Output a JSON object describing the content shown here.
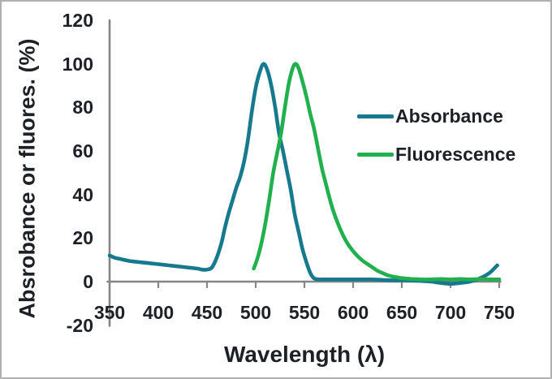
{
  "frame": {
    "background": "#ffffff",
    "border_color": "#b0b0b0"
  },
  "chart_data": {
    "type": "line",
    "title": "",
    "xlabel": "Wavelength (λ)",
    "ylabel": "Absrobance or fluores. (%)",
    "xlim": [
      350,
      750
    ],
    "ylim": [
      -20,
      120
    ],
    "x_ticks": [
      350,
      400,
      450,
      500,
      550,
      600,
      650,
      700,
      750
    ],
    "y_ticks": [
      120,
      100,
      80,
      60,
      40,
      20,
      0,
      -20
    ],
    "grid": false,
    "axis_color": "#858585",
    "text_color": "#1d2025",
    "legend_position": "middle-right",
    "series": [
      {
        "name": "Absorbance",
        "color": "#17798d",
        "points": [
          [
            350,
            12
          ],
          [
            355,
            11
          ],
          [
            360,
            10.5
          ],
          [
            370,
            9.5
          ],
          [
            380,
            9
          ],
          [
            390,
            8.5
          ],
          [
            400,
            8
          ],
          [
            410,
            7.5
          ],
          [
            420,
            7
          ],
          [
            430,
            6.5
          ],
          [
            440,
            6
          ],
          [
            445,
            5.5
          ],
          [
            450,
            5.5
          ],
          [
            455,
            6.5
          ],
          [
            460,
            11
          ],
          [
            465,
            18
          ],
          [
            468,
            24
          ],
          [
            472,
            31
          ],
          [
            476,
            37
          ],
          [
            480,
            43
          ],
          [
            484,
            48
          ],
          [
            488,
            55
          ],
          [
            492,
            65
          ],
          [
            496,
            78
          ],
          [
            500,
            89
          ],
          [
            504,
            96
          ],
          [
            508,
            100
          ],
          [
            512,
            97
          ],
          [
            516,
            90
          ],
          [
            520,
            80
          ],
          [
            524,
            68
          ],
          [
            528,
            60
          ],
          [
            532,
            51
          ],
          [
            536,
            42
          ],
          [
            540,
            31
          ],
          [
            544,
            23
          ],
          [
            548,
            15
          ],
          [
            552,
            9
          ],
          [
            556,
            4
          ],
          [
            560,
            1.5
          ],
          [
            565,
            1
          ],
          [
            570,
            1
          ],
          [
            580,
            1
          ],
          [
            590,
            1
          ],
          [
            600,
            1
          ],
          [
            610,
            1
          ],
          [
            620,
            1
          ],
          [
            630,
            0.8
          ],
          [
            640,
            0.6
          ],
          [
            650,
            0.6
          ],
          [
            660,
            0.5
          ],
          [
            670,
            0.3
          ],
          [
            680,
            0
          ],
          [
            690,
            -0.6
          ],
          [
            700,
            -1
          ],
          [
            710,
            -0.6
          ],
          [
            720,
            0
          ],
          [
            730,
            1.5
          ],
          [
            740,
            4
          ],
          [
            748,
            7.5
          ]
        ]
      },
      {
        "name": "Fluorescence",
        "color": "#22b04e",
        "points": [
          [
            498,
            6
          ],
          [
            502,
            11
          ],
          [
            506,
            18
          ],
          [
            510,
            27
          ],
          [
            514,
            38
          ],
          [
            518,
            50
          ],
          [
            522,
            59
          ],
          [
            526,
            68
          ],
          [
            530,
            80
          ],
          [
            534,
            91
          ],
          [
            538,
            98
          ],
          [
            541,
            100
          ],
          [
            544,
            98
          ],
          [
            548,
            92
          ],
          [
            552,
            85
          ],
          [
            556,
            77
          ],
          [
            560,
            70
          ],
          [
            564,
            61
          ],
          [
            568,
            52
          ],
          [
            572,
            45
          ],
          [
            576,
            38
          ],
          [
            580,
            32
          ],
          [
            585,
            26
          ],
          [
            590,
            21
          ],
          [
            595,
            17
          ],
          [
            600,
            14
          ],
          [
            605,
            11.5
          ],
          [
            610,
            9.5
          ],
          [
            615,
            8
          ],
          [
            620,
            6.5
          ],
          [
            625,
            5
          ],
          [
            630,
            4
          ],
          [
            635,
            3
          ],
          [
            640,
            2.4
          ],
          [
            645,
            2
          ],
          [
            650,
            1.6
          ],
          [
            660,
            1.2
          ],
          [
            670,
            1
          ],
          [
            680,
            1
          ],
          [
            690,
            1.2
          ],
          [
            700,
            1
          ],
          [
            710,
            1.2
          ],
          [
            720,
            1
          ],
          [
            730,
            1.2
          ],
          [
            740,
            1
          ],
          [
            750,
            1
          ]
        ]
      }
    ]
  }
}
